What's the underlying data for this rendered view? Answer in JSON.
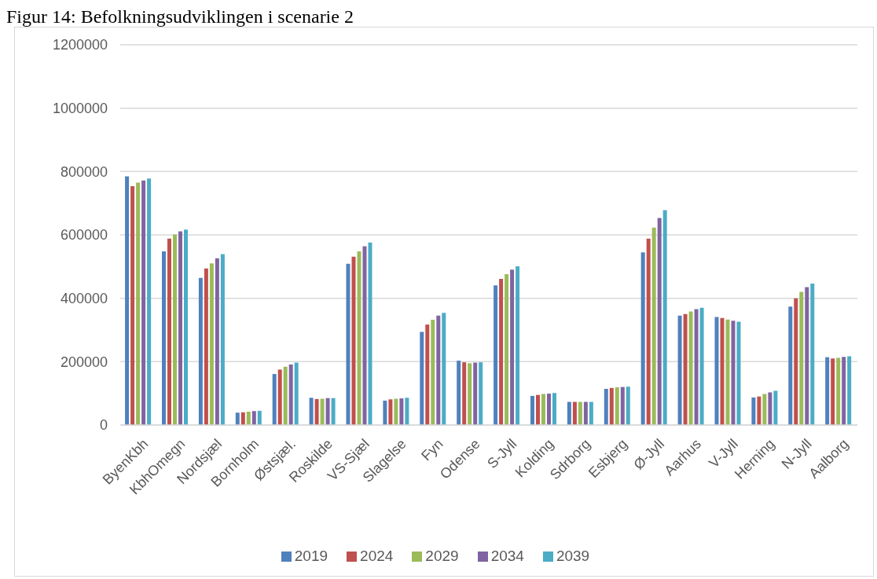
{
  "chart_data": {
    "type": "bar",
    "title": "Figur 14: Befolkningsudviklingen i scenarie 2",
    "categories": [
      "ByenKbh",
      "KbhOmegn",
      "Nordsjæl",
      "Bornholm",
      "Østsjæl.",
      "Roskilde",
      "VS-Sjæl",
      "Slagelse",
      "Fyn",
      "Odense",
      "S-Jyll",
      "Kolding",
      "Sdrborg",
      "Esbjerg",
      "Ø-Jyll",
      "Aarhus",
      "V-Jyll",
      "Herning",
      "N-Jyll",
      "Aalborg"
    ],
    "series": [
      {
        "name": "2019",
        "color": "#4f81bd",
        "values": [
          785000,
          548000,
          464000,
          39000,
          161000,
          86000,
          509000,
          77000,
          294000,
          203000,
          441000,
          92000,
          73000,
          114000,
          545000,
          345000,
          341000,
          87000,
          374000,
          214000
        ]
      },
      {
        "name": "2024",
        "color": "#c0504d",
        "values": [
          754000,
          588000,
          494000,
          40000,
          175000,
          82000,
          531000,
          81000,
          317000,
          198000,
          461000,
          95000,
          73000,
          117000,
          588000,
          350000,
          338000,
          90000,
          400000,
          210000
        ]
      },
      {
        "name": "2029",
        "color": "#9bbb59",
        "values": [
          765000,
          601000,
          510000,
          42000,
          184000,
          83000,
          548000,
          83000,
          332000,
          195000,
          476000,
          98000,
          73000,
          119000,
          623000,
          358000,
          333000,
          98000,
          420000,
          212000
        ]
      },
      {
        "name": "2034",
        "color": "#8064a2",
        "values": [
          772000,
          611000,
          526000,
          44000,
          191000,
          85000,
          564000,
          84000,
          345000,
          197000,
          490000,
          99000,
          73000,
          120000,
          653000,
          366000,
          329000,
          103000,
          435000,
          215000
        ]
      },
      {
        "name": "2039",
        "color": "#4bacc6",
        "values": [
          778000,
          617000,
          539000,
          45000,
          197000,
          85000,
          576000,
          86000,
          354000,
          198000,
          501000,
          101000,
          73000,
          121000,
          678000,
          370000,
          326000,
          108000,
          446000,
          217000
        ]
      }
    ],
    "ylim": [
      0,
      1200000
    ],
    "yticks": [
      0,
      200000,
      400000,
      600000,
      800000,
      1000000,
      1200000
    ],
    "grid": "y",
    "legend": "bottom"
  }
}
